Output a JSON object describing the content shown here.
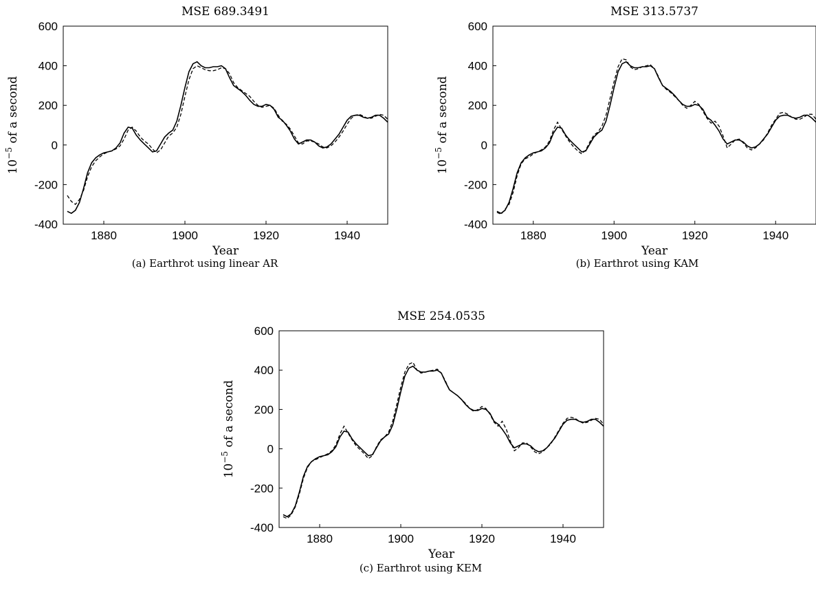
{
  "chart_data": [
    {
      "type": "line",
      "title": "MSE 689.3491",
      "caption": "(a) Earthrot using linear AR",
      "xlabel": "Year",
      "ylabel_base": "10",
      "ylabel_exp": "−5",
      "ylabel_rest": " of a second",
      "xlim": [
        1870,
        1950
      ],
      "ylim": [
        -400,
        600
      ],
      "xticks": [
        "1880",
        "1900",
        "1920",
        "1940"
      ],
      "yticks": [
        "600",
        "400",
        "200",
        "0",
        "-200",
        "-400"
      ],
      "series": [
        {
          "style": "solid",
          "x": [
            1871,
            1872,
            1873,
            1874,
            1875,
            1876,
            1877,
            1878,
            1879,
            1880,
            1881,
            1882,
            1883,
            1884,
            1885,
            1886,
            1887,
            1888,
            1889,
            1890,
            1891,
            1892,
            1893,
            1894,
            1895,
            1896,
            1897,
            1898,
            1899,
            1900,
            1901,
            1902,
            1903,
            1904,
            1905,
            1906,
            1907,
            1908,
            1909,
            1910,
            1911,
            1912,
            1913,
            1914,
            1915,
            1916,
            1917,
            1918,
            1919,
            1920,
            1921,
            1922,
            1923,
            1924,
            1925,
            1926,
            1927,
            1928,
            1929,
            1930,
            1931,
            1932,
            1933,
            1934,
            1935,
            1936,
            1937,
            1938,
            1939,
            1940,
            1941,
            1942,
            1943,
            1944,
            1945,
            1946,
            1947,
            1948,
            1949,
            1950
          ],
          "y": [
            -335,
            -345,
            -330,
            -290,
            -220,
            -140,
            -90,
            -65,
            -50,
            -40,
            -35,
            -30,
            -15,
            10,
            60,
            90,
            85,
            50,
            25,
            5,
            -15,
            -35,
            -30,
            5,
            40,
            60,
            75,
            120,
            200,
            290,
            370,
            410,
            420,
            400,
            390,
            390,
            395,
            395,
            400,
            385,
            340,
            300,
            285,
            270,
            250,
            225,
            205,
            195,
            195,
            205,
            200,
            180,
            140,
            125,
            100,
            70,
            30,
            5,
            15,
            25,
            25,
            15,
            -5,
            -15,
            -10,
            5,
            30,
            55,
            90,
            125,
            145,
            150,
            150,
            140,
            135,
            140,
            150,
            150,
            135,
            115
          ]
        },
        {
          "style": "dashed",
          "x": [
            1871,
            1872,
            1873,
            1874,
            1875,
            1876,
            1877,
            1878,
            1879,
            1880,
            1881,
            1882,
            1883,
            1884,
            1885,
            1886,
            1887,
            1888,
            1889,
            1890,
            1891,
            1892,
            1893,
            1894,
            1895,
            1896,
            1897,
            1898,
            1899,
            1900,
            1901,
            1902,
            1903,
            1904,
            1905,
            1906,
            1907,
            1908,
            1909,
            1910,
            1911,
            1912,
            1913,
            1914,
            1915,
            1916,
            1917,
            1918,
            1919,
            1920,
            1921,
            1922,
            1923,
            1924,
            1925,
            1926,
            1927,
            1928,
            1929,
            1930,
            1931,
            1932,
            1933,
            1934,
            1935,
            1936,
            1937,
            1938,
            1939,
            1940,
            1941,
            1942,
            1943,
            1944,
            1945,
            1946,
            1947,
            1948,
            1949,
            1950
          ],
          "y": [
            -255,
            -285,
            -300,
            -275,
            -230,
            -160,
            -110,
            -80,
            -60,
            -45,
            -35,
            -30,
            -20,
            -5,
            30,
            75,
            90,
            70,
            40,
            20,
            5,
            -20,
            -40,
            -25,
            10,
            45,
            60,
            90,
            155,
            245,
            330,
            385,
            400,
            390,
            380,
            375,
            375,
            380,
            390,
            385,
            360,
            315,
            290,
            275,
            260,
            245,
            220,
            200,
            190,
            195,
            200,
            185,
            150,
            120,
            105,
            80,
            45,
            10,
            5,
            20,
            20,
            15,
            5,
            -10,
            -15,
            -5,
            15,
            40,
            70,
            105,
            135,
            150,
            155,
            145,
            135,
            135,
            145,
            155,
            150,
            130
          ]
        }
      ]
    },
    {
      "type": "line",
      "title": "MSE 313.5737",
      "caption": "(b) Earthrot using KAM",
      "xlabel": "Year",
      "ylabel_base": "10",
      "ylabel_exp": "−5",
      "ylabel_rest": " of a second",
      "xlim": [
        1870,
        1950
      ],
      "ylim": [
        -400,
        600
      ],
      "xticks": [
        "1880",
        "1900",
        "1920",
        "1940"
      ],
      "yticks": [
        "600",
        "400",
        "200",
        "0",
        "-200",
        "-400"
      ],
      "series": [
        {
          "style": "solid",
          "x": [
            1871,
            1872,
            1873,
            1874,
            1875,
            1876,
            1877,
            1878,
            1879,
            1880,
            1881,
            1882,
            1883,
            1884,
            1885,
            1886,
            1887,
            1888,
            1889,
            1890,
            1891,
            1892,
            1893,
            1894,
            1895,
            1896,
            1897,
            1898,
            1899,
            1900,
            1901,
            1902,
            1903,
            1904,
            1905,
            1906,
            1907,
            1908,
            1909,
            1910,
            1911,
            1912,
            1913,
            1914,
            1915,
            1916,
            1917,
            1918,
            1919,
            1920,
            1921,
            1922,
            1923,
            1924,
            1925,
            1926,
            1927,
            1928,
            1929,
            1930,
            1931,
            1932,
            1933,
            1934,
            1935,
            1936,
            1937,
            1938,
            1939,
            1940,
            1941,
            1942,
            1943,
            1944,
            1945,
            1946,
            1947,
            1948,
            1949,
            1950
          ],
          "y": [
            -335,
            -345,
            -330,
            -290,
            -220,
            -140,
            -90,
            -65,
            -50,
            -40,
            -35,
            -30,
            -15,
            10,
            60,
            90,
            85,
            50,
            25,
            5,
            -15,
            -35,
            -30,
            5,
            40,
            60,
            75,
            120,
            200,
            290,
            370,
            410,
            420,
            400,
            390,
            390,
            395,
            395,
            400,
            385,
            340,
            300,
            285,
            270,
            250,
            225,
            205,
            195,
            195,
            205,
            200,
            180,
            140,
            125,
            100,
            70,
            30,
            5,
            15,
            25,
            25,
            15,
            -5,
            -15,
            -10,
            5,
            30,
            55,
            90,
            125,
            145,
            150,
            150,
            140,
            135,
            140,
            150,
            150,
            135,
            115
          ]
        },
        {
          "style": "dashed",
          "x": [
            1871,
            1872,
            1873,
            1874,
            1875,
            1876,
            1877,
            1878,
            1879,
            1880,
            1881,
            1882,
            1883,
            1884,
            1885,
            1886,
            1887,
            1888,
            1889,
            1890,
            1891,
            1892,
            1893,
            1894,
            1895,
            1896,
            1897,
            1898,
            1899,
            1900,
            1901,
            1902,
            1903,
            1904,
            1905,
            1906,
            1907,
            1908,
            1909,
            1910,
            1911,
            1912,
            1913,
            1914,
            1915,
            1916,
            1917,
            1918,
            1919,
            1920,
            1921,
            1922,
            1923,
            1924,
            1925,
            1926,
            1927,
            1928,
            1929,
            1930,
            1931,
            1932,
            1933,
            1934,
            1935,
            1936,
            1937,
            1938,
            1939,
            1940,
            1941,
            1942,
            1943,
            1944,
            1945,
            1946,
            1947,
            1948,
            1949,
            1950
          ],
          "y": [
            -340,
            -350,
            -325,
            -300,
            -240,
            -155,
            -95,
            -70,
            -60,
            -45,
            -35,
            -25,
            -10,
            20,
            75,
            115,
            80,
            45,
            15,
            -10,
            -30,
            -45,
            -25,
            15,
            50,
            65,
            95,
            150,
            235,
            320,
            395,
            435,
            430,
            395,
            380,
            385,
            395,
            400,
            405,
            385,
            345,
            300,
            280,
            265,
            245,
            225,
            200,
            185,
            200,
            220,
            205,
            170,
            135,
            110,
            120,
            95,
            45,
            -15,
            5,
            25,
            30,
            10,
            -15,
            -25,
            -15,
            5,
            25,
            60,
            100,
            130,
            160,
            165,
            155,
            140,
            130,
            130,
            140,
            155,
            155,
            130
          ]
        }
      ]
    },
    {
      "type": "line",
      "title": "MSE 254.0535",
      "caption": "(c) Earthrot using KEM",
      "xlabel": "Year",
      "ylabel_base": "10",
      "ylabel_exp": "−5",
      "ylabel_rest": " of a second",
      "xlim": [
        1870,
        1950
      ],
      "ylim": [
        -400,
        600
      ],
      "xticks": [
        "1880",
        "1900",
        "1920",
        "1940"
      ],
      "yticks": [
        "600",
        "400",
        "200",
        "0",
        "-200",
        "-400"
      ],
      "series": [
        {
          "style": "solid",
          "x": [
            1871,
            1872,
            1873,
            1874,
            1875,
            1876,
            1877,
            1878,
            1879,
            1880,
            1881,
            1882,
            1883,
            1884,
            1885,
            1886,
            1887,
            1888,
            1889,
            1890,
            1891,
            1892,
            1893,
            1894,
            1895,
            1896,
            1897,
            1898,
            1899,
            1900,
            1901,
            1902,
            1903,
            1904,
            1905,
            1906,
            1907,
            1908,
            1909,
            1910,
            1911,
            1912,
            1913,
            1914,
            1915,
            1916,
            1917,
            1918,
            1919,
            1920,
            1921,
            1922,
            1923,
            1924,
            1925,
            1926,
            1927,
            1928,
            1929,
            1930,
            1931,
            1932,
            1933,
            1934,
            1935,
            1936,
            1937,
            1938,
            1939,
            1940,
            1941,
            1942,
            1943,
            1944,
            1945,
            1946,
            1947,
            1948,
            1949,
            1950
          ],
          "y": [
            -335,
            -345,
            -330,
            -290,
            -220,
            -140,
            -90,
            -65,
            -50,
            -40,
            -35,
            -30,
            -15,
            10,
            60,
            90,
            85,
            50,
            25,
            5,
            -15,
            -35,
            -30,
            5,
            40,
            60,
            75,
            120,
            200,
            290,
            370,
            410,
            420,
            400,
            390,
            390,
            395,
            395,
            400,
            385,
            340,
            300,
            285,
            270,
            250,
            225,
            205,
            195,
            195,
            205,
            200,
            180,
            140,
            125,
            100,
            70,
            30,
            5,
            15,
            25,
            25,
            15,
            -5,
            -15,
            -10,
            5,
            30,
            55,
            90,
            125,
            145,
            150,
            150,
            140,
            135,
            140,
            150,
            150,
            135,
            115
          ]
        },
        {
          "style": "dashed",
          "x": [
            1871,
            1872,
            1873,
            1874,
            1875,
            1876,
            1877,
            1878,
            1879,
            1880,
            1881,
            1882,
            1883,
            1884,
            1885,
            1886,
            1887,
            1888,
            1889,
            1890,
            1891,
            1892,
            1893,
            1894,
            1895,
            1896,
            1897,
            1898,
            1899,
            1900,
            1901,
            1902,
            1903,
            1904,
            1905,
            1906,
            1907,
            1908,
            1909,
            1910,
            1911,
            1912,
            1913,
            1914,
            1915,
            1916,
            1917,
            1918,
            1919,
            1920,
            1921,
            1922,
            1923,
            1924,
            1925,
            1926,
            1927,
            1928,
            1929,
            1930,
            1931,
            1932,
            1933,
            1934,
            1935,
            1936,
            1937,
            1938,
            1939,
            1940,
            1941,
            1942,
            1943,
            1944,
            1945,
            1946,
            1947,
            1948,
            1949,
            1950
          ],
          "y": [
            -345,
            -355,
            -335,
            -295,
            -230,
            -150,
            -95,
            -65,
            -55,
            -45,
            -35,
            -25,
            -10,
            20,
            75,
            115,
            80,
            45,
            15,
            -5,
            -25,
            -50,
            -35,
            10,
            45,
            60,
            85,
            140,
            225,
            315,
            390,
            430,
            440,
            400,
            385,
            390,
            395,
            400,
            405,
            385,
            345,
            300,
            285,
            270,
            250,
            230,
            205,
            190,
            200,
            215,
            205,
            175,
            135,
            115,
            140,
            100,
            40,
            -10,
            5,
            30,
            30,
            10,
            -15,
            -25,
            -15,
            5,
            25,
            60,
            95,
            130,
            155,
            160,
            155,
            140,
            130,
            135,
            145,
            155,
            150,
            125
          ]
        }
      ]
    }
  ]
}
